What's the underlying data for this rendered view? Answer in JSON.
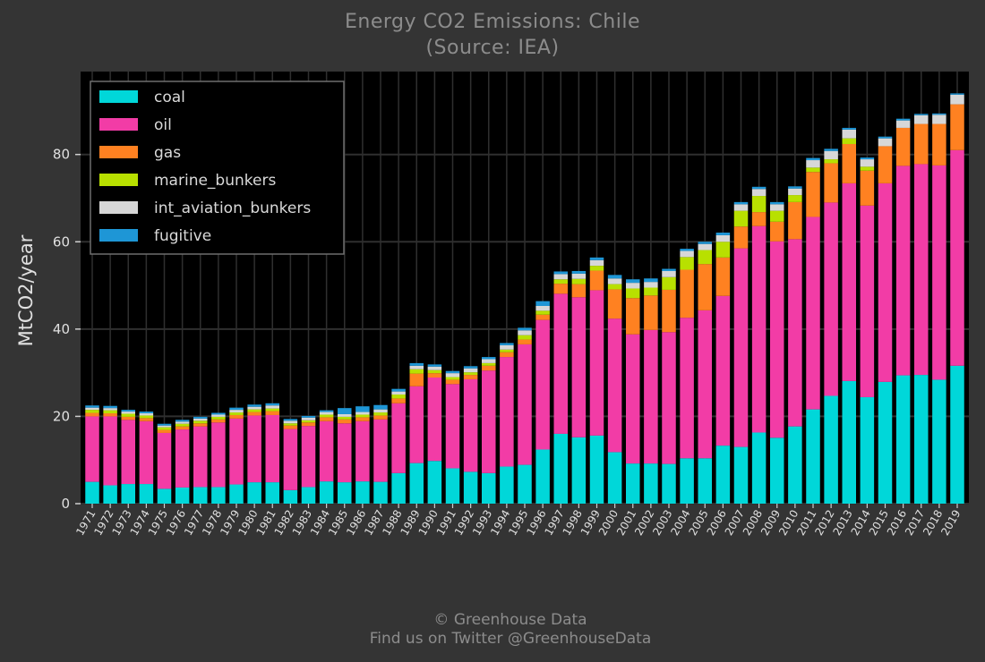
{
  "title": "Energy CO2 Emissions: Chile",
  "subtitle": "(Source: IEA)",
  "footer": {
    "line1": "© Greenhouse Data",
    "line2": "Find us on Twitter @GreenhouseData"
  },
  "colors": {
    "background": "#343434",
    "plot_background": "#000000",
    "grid": "#2f2f2f",
    "text": "#e0e0e0",
    "muted_text": "#8c8c8c"
  },
  "chart_data": {
    "type": "bar",
    "stacked": true,
    "title": "Energy CO2 Emissions: Chile",
    "subtitle": "(Source: IEA)",
    "xlabel": "",
    "ylabel": "MtCO2/year",
    "ylim": [
      0,
      99
    ],
    "yticks": [
      0,
      20,
      40,
      60,
      80
    ],
    "grid": true,
    "legend_position": "top-left",
    "categories": [
      "1971",
      "1972",
      "1973",
      "1974",
      "1975",
      "1976",
      "1977",
      "1978",
      "1979",
      "1980",
      "1981",
      "1982",
      "1983",
      "1984",
      "1985",
      "1986",
      "1987",
      "1988",
      "1989",
      "1990",
      "1991",
      "1992",
      "1993",
      "1994",
      "1995",
      "1996",
      "1997",
      "1998",
      "1999",
      "2000",
      "2001",
      "2002",
      "2003",
      "2004",
      "2005",
      "2006",
      "2007",
      "2008",
      "2009",
      "2010",
      "2011",
      "2012",
      "2013",
      "2014",
      "2015",
      "2016",
      "2017",
      "2018",
      "2019"
    ],
    "series": [
      {
        "name": "coal",
        "color": "#00d7d9",
        "values": [
          5.0,
          4.2,
          4.5,
          4.5,
          3.4,
          3.7,
          3.8,
          3.8,
          4.4,
          4.9,
          4.9,
          3.1,
          3.8,
          5.1,
          4.9,
          5.1,
          5.0,
          7.0,
          9.3,
          9.8,
          8.1,
          7.3,
          7.0,
          8.5,
          8.9,
          12.4,
          16.0,
          15.2,
          15.6,
          11.8,
          9.2,
          9.2,
          9.1,
          10.4,
          10.4,
          13.3,
          13.0,
          16.3,
          15.1,
          17.7,
          21.6,
          24.7,
          28.1,
          24.4,
          27.9,
          29.4,
          29.5,
          28.4,
          31.6
        ]
      },
      {
        "name": "oil",
        "color": "#f23ca6",
        "values": [
          15.0,
          15.8,
          14.7,
          14.4,
          12.8,
          13.3,
          13.9,
          14.8,
          15.1,
          15.3,
          15.4,
          14.0,
          14.0,
          13.8,
          13.5,
          13.8,
          14.3,
          16.0,
          17.6,
          19.1,
          19.3,
          21.2,
          23.5,
          25.1,
          27.6,
          29.7,
          32.1,
          32.1,
          33.3,
          30.6,
          29.6,
          30.6,
          30.2,
          32.2,
          33.9,
          34.3,
          45.5,
          47.3,
          45.0,
          42.9,
          44.1,
          44.3,
          45.3,
          43.9,
          45.5,
          48.0,
          48.3,
          49.1,
          49.4
        ]
      },
      {
        "name": "gas",
        "color": "#ff8121",
        "values": [
          0.8,
          0.7,
          0.7,
          0.7,
          0.7,
          0.7,
          0.7,
          0.7,
          0.8,
          0.8,
          0.9,
          0.8,
          0.8,
          0.9,
          0.9,
          0.9,
          0.9,
          1.1,
          2.9,
          1.0,
          1.0,
          1.0,
          1.1,
          1.1,
          1.1,
          1.2,
          2.3,
          3.0,
          4.5,
          6.7,
          8.3,
          7.9,
          9.7,
          11.0,
          10.6,
          8.8,
          5.0,
          3.2,
          4.5,
          8.5,
          10.3,
          9.0,
          9.0,
          8.0,
          8.5,
          8.7,
          9.2,
          9.5,
          10.5
        ]
      },
      {
        "name": "marine_bunkers",
        "color": "#b8e000",
        "values": [
          0.7,
          0.7,
          0.7,
          0.6,
          0.6,
          0.6,
          0.6,
          0.6,
          0.6,
          0.6,
          0.6,
          0.5,
          0.5,
          0.6,
          0.6,
          0.6,
          0.7,
          0.9,
          1.0,
          0.7,
          0.6,
          0.6,
          0.6,
          0.6,
          1.0,
          0.9,
          1.0,
          1.2,
          1.1,
          1.2,
          2.2,
          1.8,
          2.9,
          2.9,
          3.2,
          3.6,
          3.6,
          3.7,
          2.5,
          1.6,
          1.0,
          0.9,
          1.3,
          0.9,
          0.0,
          0.0,
          0.0,
          0.0,
          0.0
        ]
      },
      {
        "name": "int_aviation_bunkers",
        "color": "#d7d7d7",
        "values": [
          0.5,
          0.5,
          0.5,
          0.5,
          0.4,
          0.5,
          0.5,
          0.5,
          0.6,
          0.6,
          0.7,
          0.6,
          0.6,
          0.6,
          0.6,
          0.6,
          0.7,
          0.7,
          0.8,
          0.8,
          0.9,
          0.9,
          0.9,
          1.0,
          1.1,
          1.1,
          1.2,
          1.2,
          1.3,
          1.3,
          1.3,
          1.3,
          1.4,
          1.4,
          1.4,
          1.5,
          1.5,
          1.6,
          1.5,
          1.5,
          1.7,
          1.9,
          2.0,
          1.7,
          1.8,
          1.7,
          2.0,
          2.1,
          2.2
        ]
      },
      {
        "name": "fugitive",
        "color": "#1e96d6",
        "values": [
          0.5,
          0.5,
          0.4,
          0.4,
          0.4,
          0.4,
          0.4,
          0.4,
          0.5,
          0.5,
          0.5,
          0.4,
          0.4,
          0.4,
          1.4,
          1.3,
          1.0,
          0.6,
          0.6,
          0.5,
          0.5,
          0.5,
          0.5,
          0.5,
          0.6,
          1.1,
          0.6,
          0.6,
          0.6,
          0.8,
          0.8,
          0.8,
          0.5,
          0.5,
          0.5,
          0.6,
          0.5,
          0.5,
          0.5,
          0.5,
          0.5,
          0.5,
          0.4,
          0.4,
          0.4,
          0.4,
          0.3,
          0.3,
          0.3
        ]
      }
    ]
  }
}
